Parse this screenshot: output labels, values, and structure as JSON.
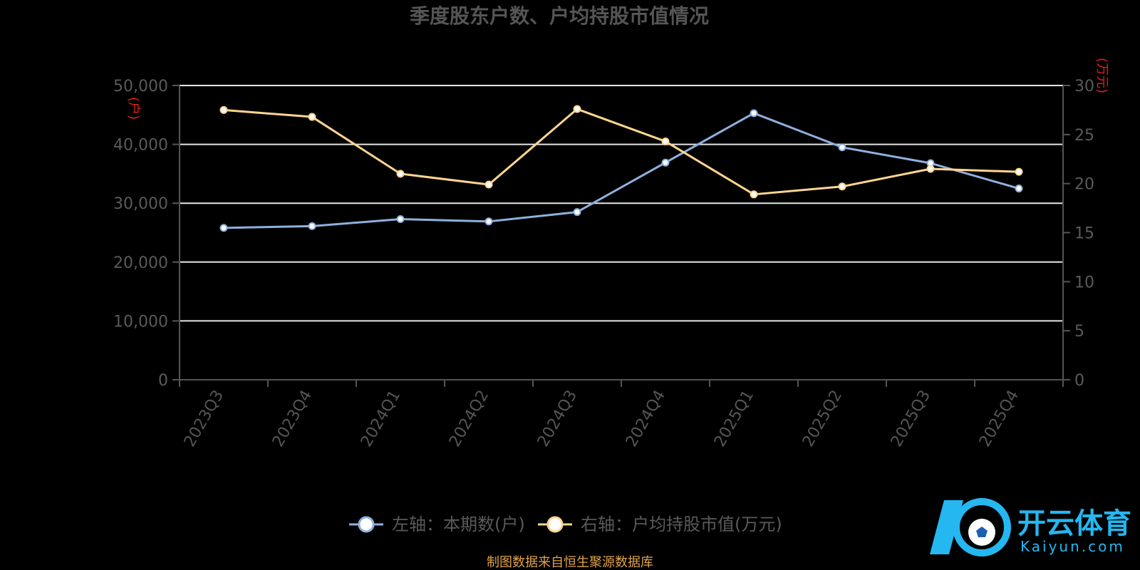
{
  "chart_data": {
    "type": "line",
    "title": "季度股东户数、户均持股市值情况",
    "categories": [
      "2023Q3",
      "2023Q4",
      "2024Q1",
      "2024Q2",
      "2024Q3",
      "2024Q4",
      "2025Q1",
      "2025Q2",
      "2025Q3",
      "2025Q4"
    ],
    "left_axis": {
      "unit": "(户)",
      "ylim": [
        0,
        50000
      ],
      "ticks": [
        "0",
        "10,000",
        "20,000",
        "30,000",
        "40,000",
        "50,000"
      ],
      "tick_values": [
        0,
        10000,
        20000,
        30000,
        40000,
        50000
      ]
    },
    "right_axis": {
      "unit": "(万元)",
      "ylim": [
        0,
        30
      ],
      "ticks": [
        "0",
        "5",
        "10",
        "15",
        "20",
        "25",
        "30"
      ],
      "tick_values": [
        0,
        5,
        10,
        15,
        20,
        25,
        30
      ]
    },
    "series": [
      {
        "name": "左轴：本期数(户)",
        "axis": "left",
        "color": "#8fb0de",
        "values": [
          25800,
          26100,
          27300,
          26900,
          28500,
          36900,
          45300,
          39500,
          36800,
          32500
        ]
      },
      {
        "name": "右轴：户均持股市值(万元)",
        "axis": "right",
        "color": "#ffd591",
        "values": [
          27.5,
          26.8,
          21.0,
          19.9,
          27.6,
          24.3,
          18.9,
          19.7,
          21.5,
          21.2
        ]
      }
    ],
    "grid": true,
    "legend_position": "bottom-center",
    "source_note": "制图数据来自恒生聚源数据库"
  },
  "watermark": {
    "cn": "开云体育",
    "en": "Kaiyun.com",
    "color": "#25b7f0"
  }
}
